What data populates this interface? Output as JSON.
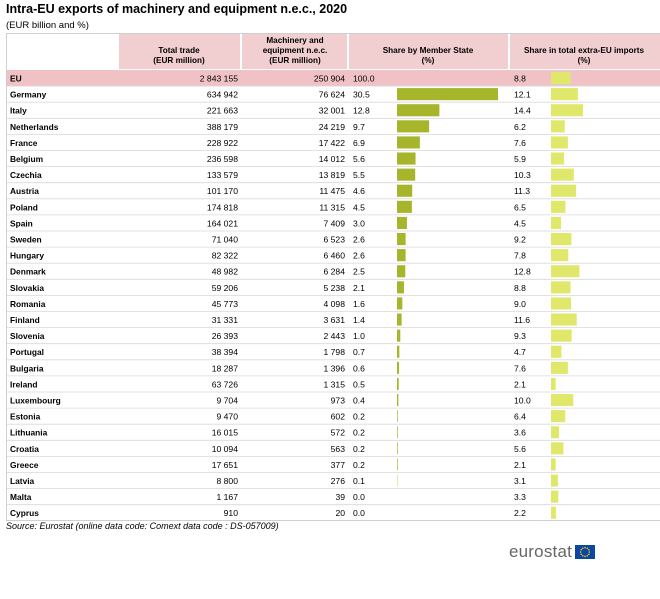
{
  "title": "Intra-EU exports of machinery and equipment n.e.c., 2020",
  "subtitle": "(EUR billion and %)",
  "source": "Source: Eurostat (online data code: Comext data code : DS-057009)",
  "brand": "eurostat",
  "colors": {
    "header_bg": "#f1cfd1",
    "eu_row_bg": "#f0c2c6",
    "bar_share": "#a7b52a",
    "bar_extra": "#dfe86a",
    "gridline": "#d9d9d9"
  },
  "icons": {
    "flag": "eu-flag-icon"
  },
  "columns": {
    "total_trade": [
      "Total trade",
      "(EUR million)"
    ],
    "machinery": [
      "Machinery and",
      "equipment n.e.c.",
      "(EUR million)"
    ],
    "share_ms": [
      "Share by Member State",
      "(%)"
    ],
    "share_extra": [
      "Share in total extra-EU imports",
      "(%)"
    ]
  },
  "chart_data": {
    "type": "table",
    "title": "Intra-EU exports of machinery and equipment n.e.c., 2020",
    "subtitle": "(EUR billion and %)",
    "rows": [
      {
        "name": "EU",
        "total": "2 843 155",
        "mach": "250 904",
        "share": 100.0,
        "extra": 8.8,
        "share_bar": false
      },
      {
        "name": "Germany",
        "total": "634 942",
        "mach": "76 624",
        "share": 30.5,
        "extra": 12.1,
        "share_bar": true
      },
      {
        "name": "Italy",
        "total": "221 663",
        "mach": "32 001",
        "share": 12.8,
        "extra": 14.4,
        "share_bar": true
      },
      {
        "name": "Netherlands",
        "total": "388 179",
        "mach": "24 219",
        "share": 9.7,
        "extra": 6.2,
        "share_bar": true
      },
      {
        "name": "France",
        "total": "228 922",
        "mach": "17 422",
        "share": 6.9,
        "extra": 7.6,
        "share_bar": true
      },
      {
        "name": "Belgium",
        "total": "236 598",
        "mach": "14 012",
        "share": 5.6,
        "extra": 5.9,
        "share_bar": true
      },
      {
        "name": "Czechia",
        "total": "133 579",
        "mach": "13 819",
        "share": 5.5,
        "extra": 10.3,
        "share_bar": true
      },
      {
        "name": "Austria",
        "total": "101 170",
        "mach": "11 475",
        "share": 4.6,
        "extra": 11.3,
        "share_bar": true
      },
      {
        "name": "Poland",
        "total": "174 818",
        "mach": "11 315",
        "share": 4.5,
        "extra": 6.5,
        "share_bar": true
      },
      {
        "name": "Spain",
        "total": "164 021",
        "mach": "7 409",
        "share": 3.0,
        "extra": 4.5,
        "share_bar": true
      },
      {
        "name": "Sweden",
        "total": "71 040",
        "mach": "6 523",
        "share": 2.6,
        "extra": 9.2,
        "share_bar": true
      },
      {
        "name": "Hungary",
        "total": "82 322",
        "mach": "6 460",
        "share": 2.6,
        "extra": 7.8,
        "share_bar": true
      },
      {
        "name": "Denmark",
        "total": "48 982",
        "mach": "6 284",
        "share": 2.5,
        "extra": 12.8,
        "share_bar": true
      },
      {
        "name": "Slovakia",
        "total": "59 206",
        "mach": "5 238",
        "share": 2.1,
        "extra": 8.8,
        "share_bar": true
      },
      {
        "name": "Romania",
        "total": "45 773",
        "mach": "4 098",
        "share": 1.6,
        "extra": 9.0,
        "share_bar": true
      },
      {
        "name": "Finland",
        "total": "31 331",
        "mach": "3 631",
        "share": 1.4,
        "extra": 11.6,
        "share_bar": true
      },
      {
        "name": "Slovenia",
        "total": "26 393",
        "mach": "2 443",
        "share": 1.0,
        "extra": 9.3,
        "share_bar": true
      },
      {
        "name": "Portugal",
        "total": "38 394",
        "mach": "1 798",
        "share": 0.7,
        "extra": 4.7,
        "share_bar": true
      },
      {
        "name": "Bulgaria",
        "total": "18 287",
        "mach": "1 396",
        "share": 0.6,
        "extra": 7.6,
        "share_bar": true
      },
      {
        "name": "Ireland",
        "total": "63 726",
        "mach": "1 315",
        "share": 0.5,
        "extra": 2.1,
        "share_bar": true
      },
      {
        "name": "Luxembourg",
        "total": "9 704",
        "mach": "973",
        "share": 0.4,
        "extra": 10.0,
        "share_bar": true
      },
      {
        "name": "Estonia",
        "total": "9 470",
        "mach": "602",
        "share": 0.2,
        "extra": 6.4,
        "share_bar": true
      },
      {
        "name": "Lithuania",
        "total": "16 015",
        "mach": "572",
        "share": 0.2,
        "extra": 3.6,
        "share_bar": true
      },
      {
        "name": "Croatia",
        "total": "10 094",
        "mach": "563",
        "share": 0.2,
        "extra": 5.6,
        "share_bar": true
      },
      {
        "name": "Greece",
        "total": "17 651",
        "mach": "377",
        "share": 0.2,
        "extra": 2.1,
        "share_bar": true
      },
      {
        "name": "Latvia",
        "total": "8 800",
        "mach": "276",
        "share": 0.1,
        "extra": 3.1,
        "share_bar": true
      },
      {
        "name": "Malta",
        "total": "1 167",
        "mach": "39",
        "share": 0.0,
        "extra": 3.3,
        "share_bar": true
      },
      {
        "name": "Cyprus",
        "total": "910",
        "mach": "20",
        "share": 0.0,
        "extra": 2.2,
        "share_bar": true
      }
    ],
    "grid": true
  }
}
